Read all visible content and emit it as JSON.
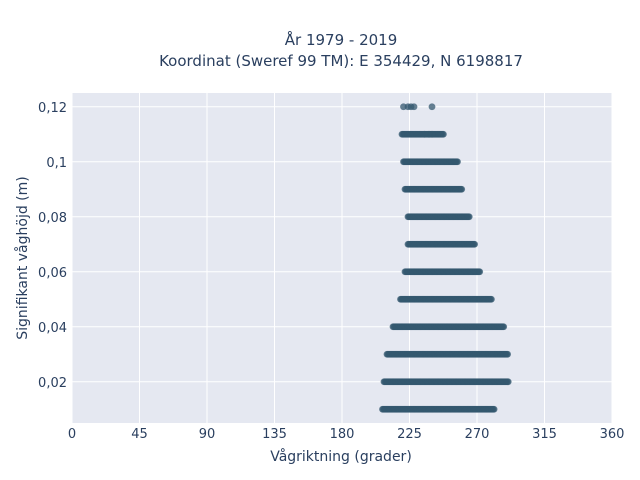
{
  "chart_data": {
    "type": "scatter",
    "title_line1": "År 1979 - 2019",
    "title_line2": "Koordinat (Sweref 99 TM): E 354429, N 6198817",
    "xlabel": "Vågriktning (grader)",
    "ylabel": "Signifikant våghöjd (m)",
    "xlim": [
      0,
      360
    ],
    "ylim": [
      0.005,
      0.125
    ],
    "xticks": [
      0,
      45,
      90,
      135,
      180,
      225,
      270,
      315,
      360
    ],
    "xtick_labels": [
      "0",
      "45",
      "90",
      "135",
      "180",
      "225",
      "270",
      "315",
      "360"
    ],
    "yticks": [
      0.02,
      0.04,
      0.06,
      0.08,
      0.1,
      0.12
    ],
    "ytick_labels": [
      "0,02",
      "0,04",
      "0,06",
      "0,08",
      "0,1",
      "0,12"
    ],
    "grid": true,
    "marker_color": "#34586f",
    "plot_background": "#e5e8f1",
    "series": [
      {
        "bands": [
          {
            "y": 0.01,
            "x_min": 207,
            "x_max": 282
          },
          {
            "y": 0.02,
            "x_min": 208,
            "x_max": 291
          },
          {
            "y": 0.03,
            "x_min": 210,
            "x_max": 291
          },
          {
            "y": 0.04,
            "x_min": 214,
            "x_max": 288
          },
          {
            "y": 0.05,
            "x_min": 219,
            "x_max": 280
          },
          {
            "y": 0.06,
            "x_min": 222,
            "x_max": 272
          },
          {
            "y": 0.07,
            "x_min": 224,
            "x_max": 269
          },
          {
            "y": 0.08,
            "x_min": 224,
            "x_max": 265
          },
          {
            "y": 0.09,
            "x_min": 222,
            "x_max": 260
          },
          {
            "y": 0.1,
            "x_min": 221,
            "x_max": 257
          },
          {
            "y": 0.11,
            "x_min": 220,
            "x_max": 248
          }
        ],
        "points": [
          {
            "x": 221,
            "y": 0.12
          },
          {
            "x": 224,
            "y": 0.12
          },
          {
            "x": 226,
            "y": 0.12
          },
          {
            "x": 228,
            "y": 0.12
          },
          {
            "x": 240,
            "y": 0.12
          },
          {
            "x": 235,
            "y": 0.11
          },
          {
            "x": 238,
            "y": 0.11
          },
          {
            "x": 240,
            "y": 0.11
          }
        ]
      }
    ]
  }
}
